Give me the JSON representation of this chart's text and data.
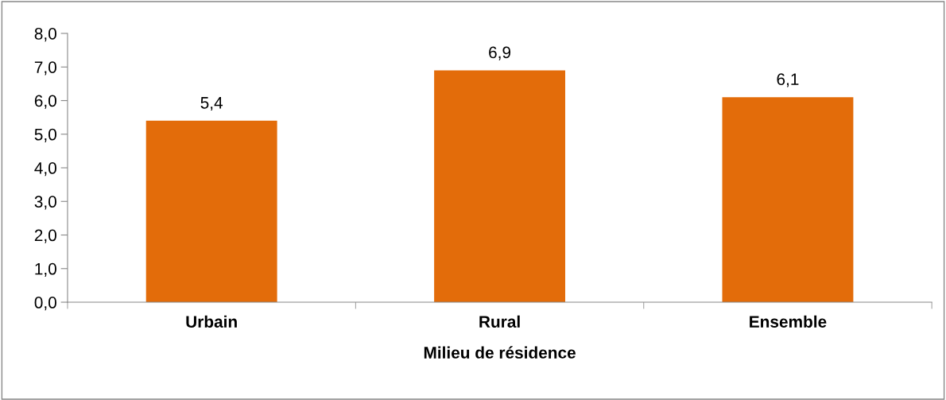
{
  "chart_data": {
    "type": "bar",
    "xlabel": "Milieu de résidence",
    "categories": [
      "Urbain",
      "Rural",
      "Ensemble"
    ],
    "values": [
      5.4,
      6.9,
      6.1
    ],
    "value_labels": [
      "5,4",
      "6,9",
      "6,1"
    ],
    "color": "#e36c0a",
    "ylim": [
      0,
      8
    ],
    "yticks": [
      {
        "value": 0,
        "label": "0,0"
      },
      {
        "value": 1,
        "label": "1,0"
      },
      {
        "value": 2,
        "label": "2,0"
      },
      {
        "value": 3,
        "label": "3,0"
      },
      {
        "value": 4,
        "label": "4,0"
      },
      {
        "value": 5,
        "label": "5,0"
      },
      {
        "value": 6,
        "label": "6,0"
      },
      {
        "value": 7,
        "label": "7,0"
      },
      {
        "value": 8,
        "label": "8,0"
      }
    ],
    "grid": false,
    "legend": false
  }
}
